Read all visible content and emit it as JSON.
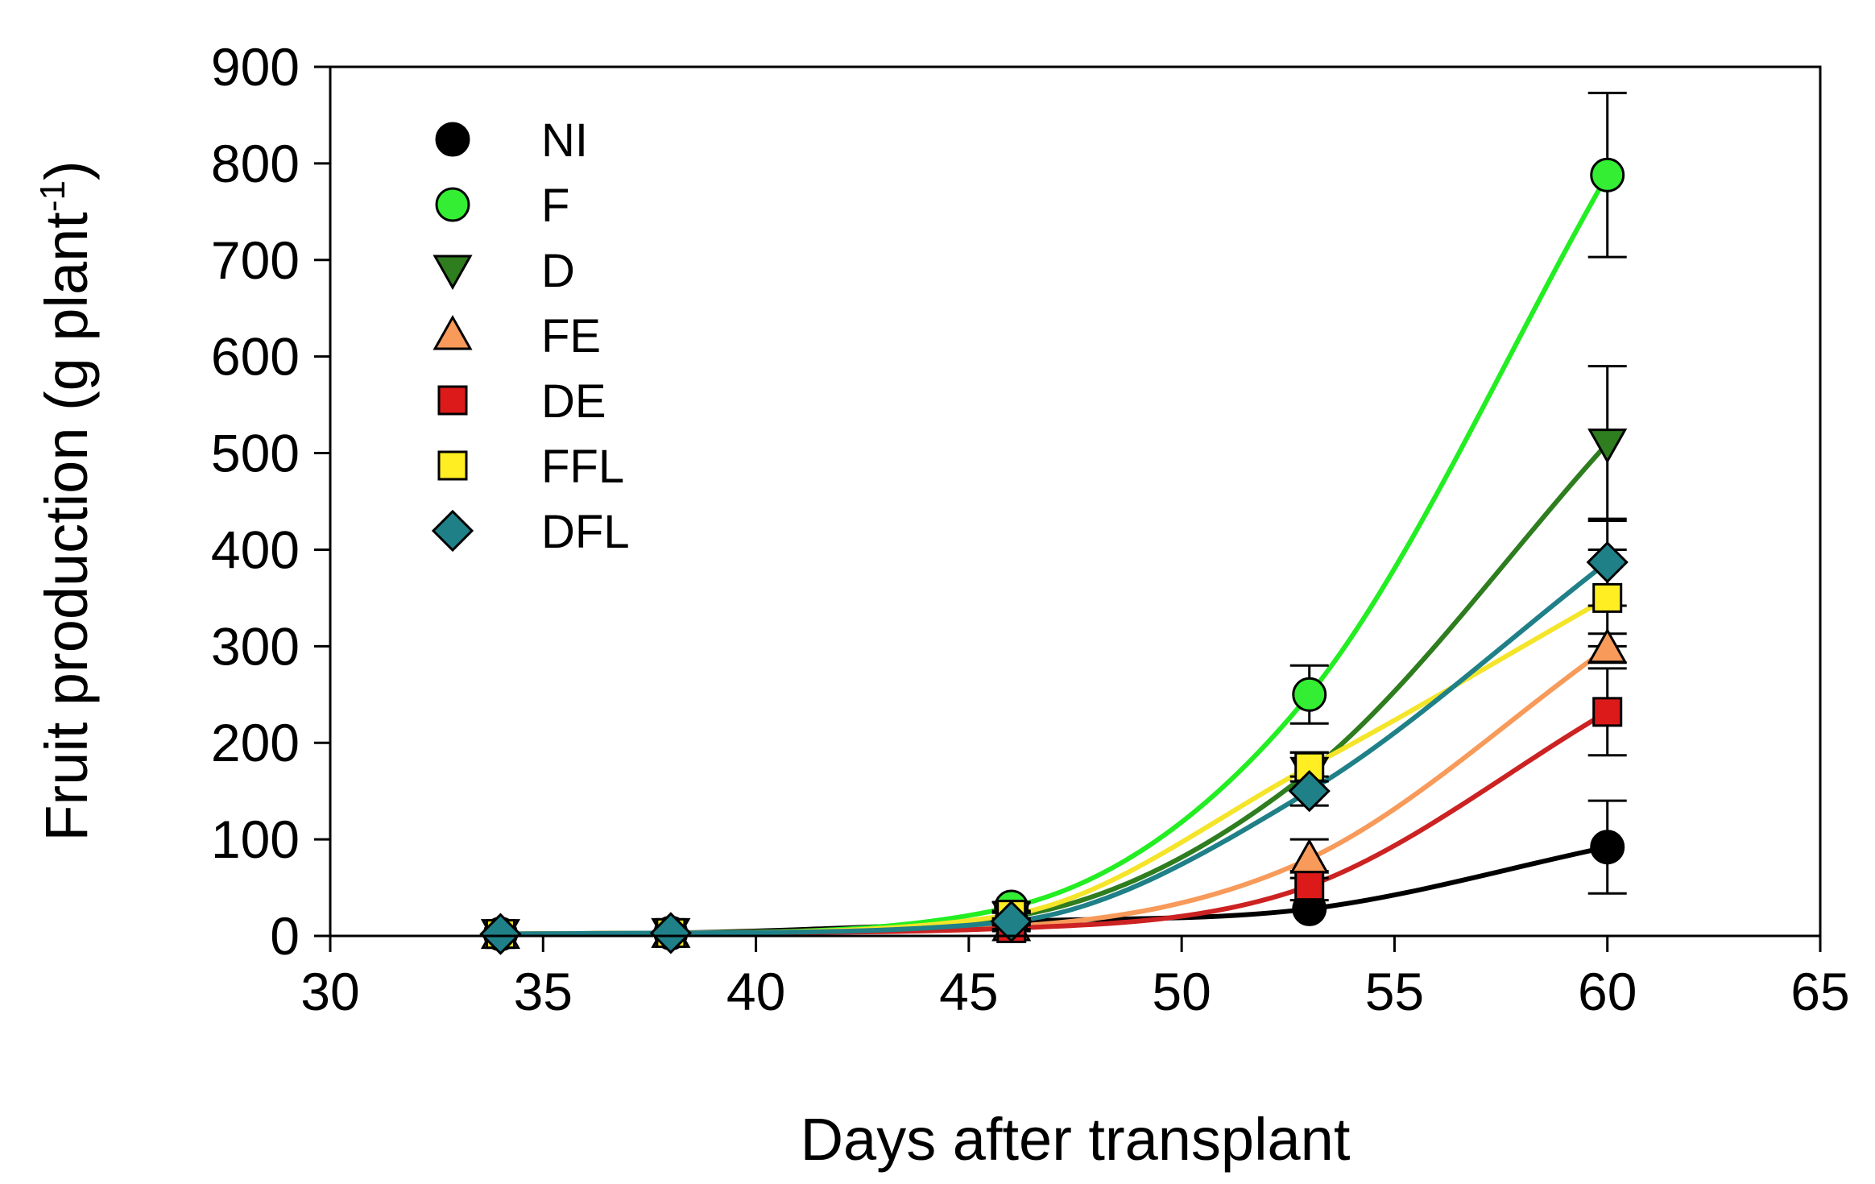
{
  "chart_data": {
    "type": "line",
    "title": "",
    "xlabel": "Days after transplant",
    "ylabel_main": "Fruit production (g plant",
    "ylabel_sup": "-1",
    "ylabel_close": ")",
    "xlim": [
      30,
      65
    ],
    "ylim": [
      0,
      900
    ],
    "xticks": [
      "30",
      "35",
      "40",
      "45",
      "50",
      "55",
      "60",
      "65"
    ],
    "yticks": [
      "0",
      "100",
      "200",
      "300",
      "400",
      "500",
      "600",
      "700",
      "800",
      "900"
    ],
    "grid": false,
    "legend": "top-left",
    "x": [
      34,
      38,
      46,
      53,
      60
    ],
    "series": [
      {
        "name": "NI",
        "marker": "circle",
        "color": "#000000",
        "line_color": "#000000",
        "values": [
          2,
          3,
          15,
          28,
          92
        ],
        "errors": [
          0,
          0,
          0,
          0,
          48
        ]
      },
      {
        "name": "F",
        "marker": "circle",
        "color": "#33ee33",
        "line_color": "#22ee22",
        "values": [
          2,
          3,
          30,
          250,
          788
        ],
        "errors": [
          0,
          0,
          5,
          30,
          85
        ]
      },
      {
        "name": "D",
        "marker": "triangle-down",
        "color": "#2e7d1e",
        "line_color": "#2e7d1e",
        "values": [
          2,
          3,
          20,
          170,
          510
        ],
        "errors": [
          0,
          0,
          4,
          20,
          80
        ]
      },
      {
        "name": "FE",
        "marker": "triangle-up",
        "color": "#f79a5a",
        "line_color": "#f79a5a",
        "values": [
          2,
          3,
          10,
          80,
          298
        ],
        "errors": [
          0,
          0,
          3,
          20,
          15
        ]
      },
      {
        "name": "DE",
        "marker": "square",
        "color": "#dd1a1a",
        "line_color": "#cc2222",
        "values": [
          2,
          3,
          8,
          52,
          232
        ],
        "errors": [
          0,
          0,
          3,
          15,
          45
        ]
      },
      {
        "name": "FFL",
        "marker": "square",
        "color": "#ffee22",
        "line_color": "#f5e52a",
        "values": [
          2,
          3,
          22,
          175,
          350
        ],
        "errors": [
          0,
          0,
          4,
          15,
          50
        ]
      },
      {
        "name": "DFL",
        "marker": "diamond",
        "color": "#1f8088",
        "line_color": "#1f8088",
        "values": [
          2,
          3,
          15,
          150,
          387
        ],
        "errors": [
          0,
          0,
          3,
          15,
          45
        ]
      }
    ]
  }
}
